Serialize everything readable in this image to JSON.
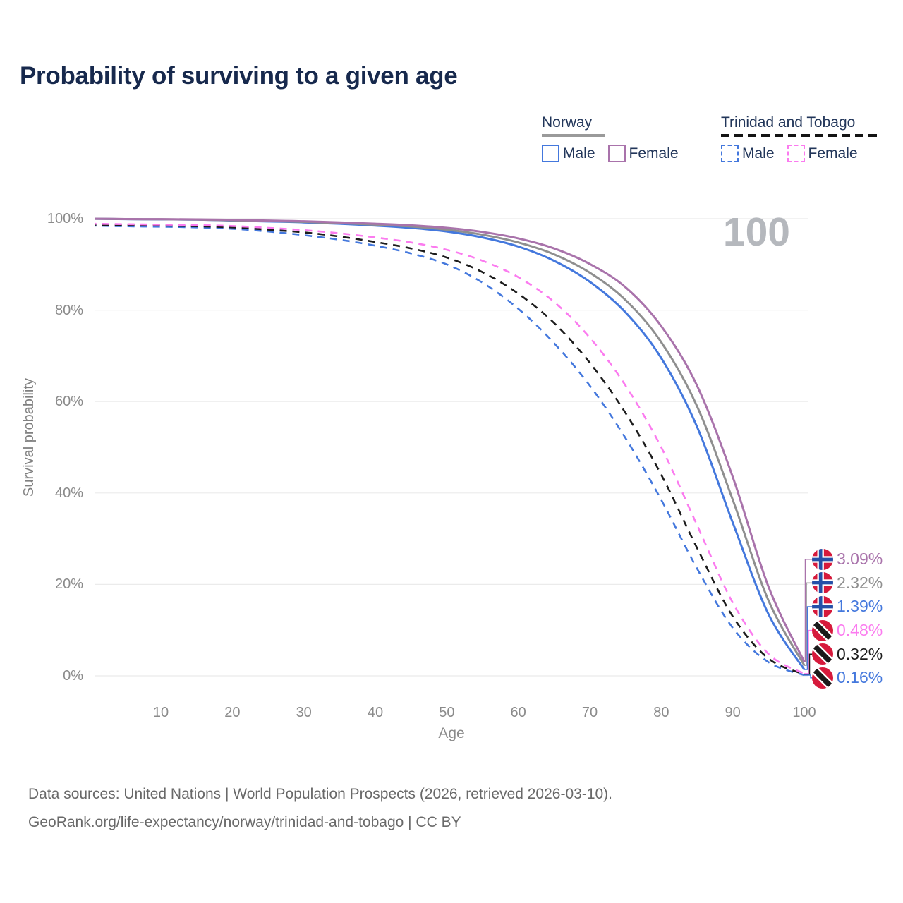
{
  "header": {
    "title": "Probability of surviving to a given age"
  },
  "hover": {
    "age_display": "100"
  },
  "legend": {
    "groups": [
      {
        "country": "Norway",
        "line_style": "solid",
        "underline_color": "#9a9a9a",
        "items": [
          {
            "label": "Male",
            "color": "#4478dd"
          },
          {
            "label": "Female",
            "color": "#a973ab"
          }
        ]
      },
      {
        "country": "Trinidad and Tobago",
        "line_style": "dashed",
        "underline_color": "#141414",
        "items": [
          {
            "label": "Male",
            "color": "#4478dd"
          },
          {
            "label": "Female",
            "color": "#fb7bef"
          }
        ]
      }
    ]
  },
  "chart_data": {
    "type": "line",
    "title": "Probability of surviving to a given age",
    "xlabel": "Age",
    "ylabel": "Survival probability",
    "xlim": [
      0,
      100
    ],
    "ylim": [
      0,
      100
    ],
    "grid": "horizontal",
    "x_ticks": [
      10,
      20,
      30,
      40,
      50,
      60,
      70,
      80,
      90,
      100
    ],
    "y_ticks": [
      0,
      20,
      40,
      60,
      80,
      100
    ],
    "y_tick_labels": [
      "0%",
      "20%",
      "40%",
      "60%",
      "80%",
      "100%"
    ],
    "hovered_age": 100,
    "x": [
      0,
      5,
      10,
      15,
      20,
      25,
      30,
      35,
      40,
      45,
      50,
      55,
      60,
      65,
      70,
      75,
      80,
      85,
      90,
      95,
      100
    ],
    "series": [
      {
        "id": "norway-female",
        "country": "Norway",
        "sex": "Female",
        "color": "#a973ab",
        "dash": false,
        "flag": "norway",
        "end_label": "3.09%",
        "values": [
          100,
          99.93,
          99.9,
          99.85,
          99.75,
          99.6,
          99.45,
          99.2,
          98.9,
          98.55,
          98.0,
          97.1,
          95.7,
          93.5,
          90.1,
          85.0,
          76.5,
          63.5,
          43.5,
          19.5,
          3.09
        ]
      },
      {
        "id": "norway-both-sexes",
        "country": "Norway",
        "sex": "Both sexes",
        "color": "#8f8f8f",
        "dash": false,
        "flag": "norway",
        "end_label": "2.32%",
        "values": [
          100,
          99.92,
          99.87,
          99.8,
          99.65,
          99.5,
          99.3,
          99.05,
          98.7,
          98.3,
          97.6,
          96.5,
          94.8,
          92.2,
          88.2,
          82.2,
          73.0,
          59.0,
          38.5,
          16.5,
          2.32
        ]
      },
      {
        "id": "norway-male",
        "country": "Norway",
        "sex": "Male",
        "color": "#4478dd",
        "dash": false,
        "flag": "norway",
        "end_label": "1.39%",
        "values": [
          100,
          99.9,
          99.85,
          99.8,
          99.6,
          99.4,
          99.2,
          98.9,
          98.5,
          98.0,
          97.2,
          95.9,
          93.9,
          90.8,
          86.2,
          79.5,
          69.5,
          54.5,
          33.5,
          13.5,
          1.39
        ]
      },
      {
        "id": "trinidad-and-tobago-female",
        "country": "Trinidad and Tobago",
        "sex": "Female",
        "color": "#fb7bef",
        "dash": true,
        "flag": "tt",
        "end_label": "0.48%",
        "values": [
          98.9,
          98.8,
          98.7,
          98.6,
          98.4,
          98.0,
          97.5,
          96.8,
          95.9,
          94.8,
          93.2,
          90.8,
          87.2,
          81.8,
          74.0,
          63.5,
          50.0,
          33.0,
          16.0,
          4.8,
          0.48
        ]
      },
      {
        "id": "trinidad-and-tobago-both-sexes",
        "country": "Trinidad and Tobago",
        "sex": "Both sexes",
        "color": "#1c1c1c",
        "dash": true,
        "flag": "tt",
        "end_label": "0.32%",
        "values": [
          98.7,
          98.6,
          98.5,
          98.35,
          98.1,
          97.6,
          97.0,
          96.1,
          94.9,
          93.5,
          91.5,
          88.3,
          83.6,
          77.2,
          68.5,
          57.5,
          44.0,
          28.0,
          13.0,
          3.8,
          0.32
        ]
      },
      {
        "id": "trinidad-and-tobago-male",
        "country": "Trinidad and Tobago",
        "sex": "Male",
        "color": "#4478dd",
        "dash": true,
        "flag": "tt",
        "end_label": "0.16%",
        "values": [
          98.5,
          98.35,
          98.25,
          98.1,
          97.8,
          97.2,
          96.4,
          95.4,
          94.1,
          92.4,
          90.0,
          86.0,
          80.3,
          72.8,
          63.5,
          52.0,
          38.5,
          23.5,
          10.5,
          3.0,
          0.16
        ]
      }
    ]
  },
  "footer": {
    "line1": "Data sources: United Nations | World Population Prospects (2026, retrieved 2026-03-10).",
    "line2": "GeoRank.org/life-expectancy/norway/trinidad-and-tobago | CC BY"
  }
}
